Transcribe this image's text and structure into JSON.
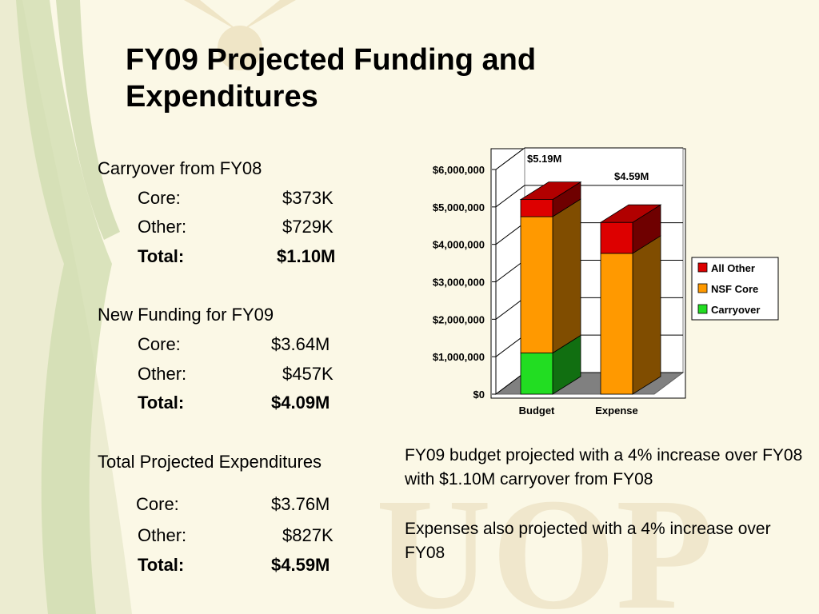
{
  "slide": {
    "title_line1": "FY09 Projected Funding and",
    "title_line2": "Expenditures"
  },
  "sections": {
    "carryover": {
      "heading": "Carryover from FY08",
      "core_label": "Core:",
      "core_value": "$373K",
      "other_label": "Other:",
      "other_value": "$729K",
      "total_label": "Total:",
      "total_value": "$1.10M"
    },
    "new_funding": {
      "heading": "New Funding for FY09",
      "core_label": "Core:",
      "core_value": "$3.64M",
      "other_label": "Other:",
      "other_value": "$457K",
      "total_label": "Total:",
      "total_value": "$4.09M"
    },
    "expenditures": {
      "heading": "Total Projected Expenditures",
      "core_label": "Core:",
      "core_value": "$3.76M",
      "other_label": "Other:",
      "other_value": "$827K",
      "total_label": "Total:",
      "total_value": "$4.59M"
    }
  },
  "notes": {
    "line1": "FY09 budget projected with a 4% increase over FY08 with $1.10M carryover from FY08",
    "line2": "Expenses also projected with a 4% increase over FY08"
  },
  "chart_data": {
    "type": "bar",
    "stacked": true,
    "three_d": true,
    "categories": [
      "Budget",
      "Expense"
    ],
    "series": [
      {
        "name": "Carryover",
        "values": [
          1100000,
          0
        ],
        "color": "#22dd22"
      },
      {
        "name": "NSF Core",
        "values": [
          3640000,
          3760000
        ],
        "color": "#ff9900"
      },
      {
        "name": "All Other",
        "values": [
          457000,
          827000
        ],
        "color": "#dd0000"
      }
    ],
    "total_labels": [
      "$5.19M",
      "$4.59M"
    ],
    "y_ticks": [
      "$0",
      "$1,000,000",
      "$2,000,000",
      "$3,000,000",
      "$4,000,000",
      "$5,000,000",
      "$6,000,000"
    ],
    "ylim": [
      0,
      6000000
    ],
    "legend_position": "right",
    "legend_order": [
      "All Other",
      "NSF Core",
      "Carryover"
    ]
  }
}
